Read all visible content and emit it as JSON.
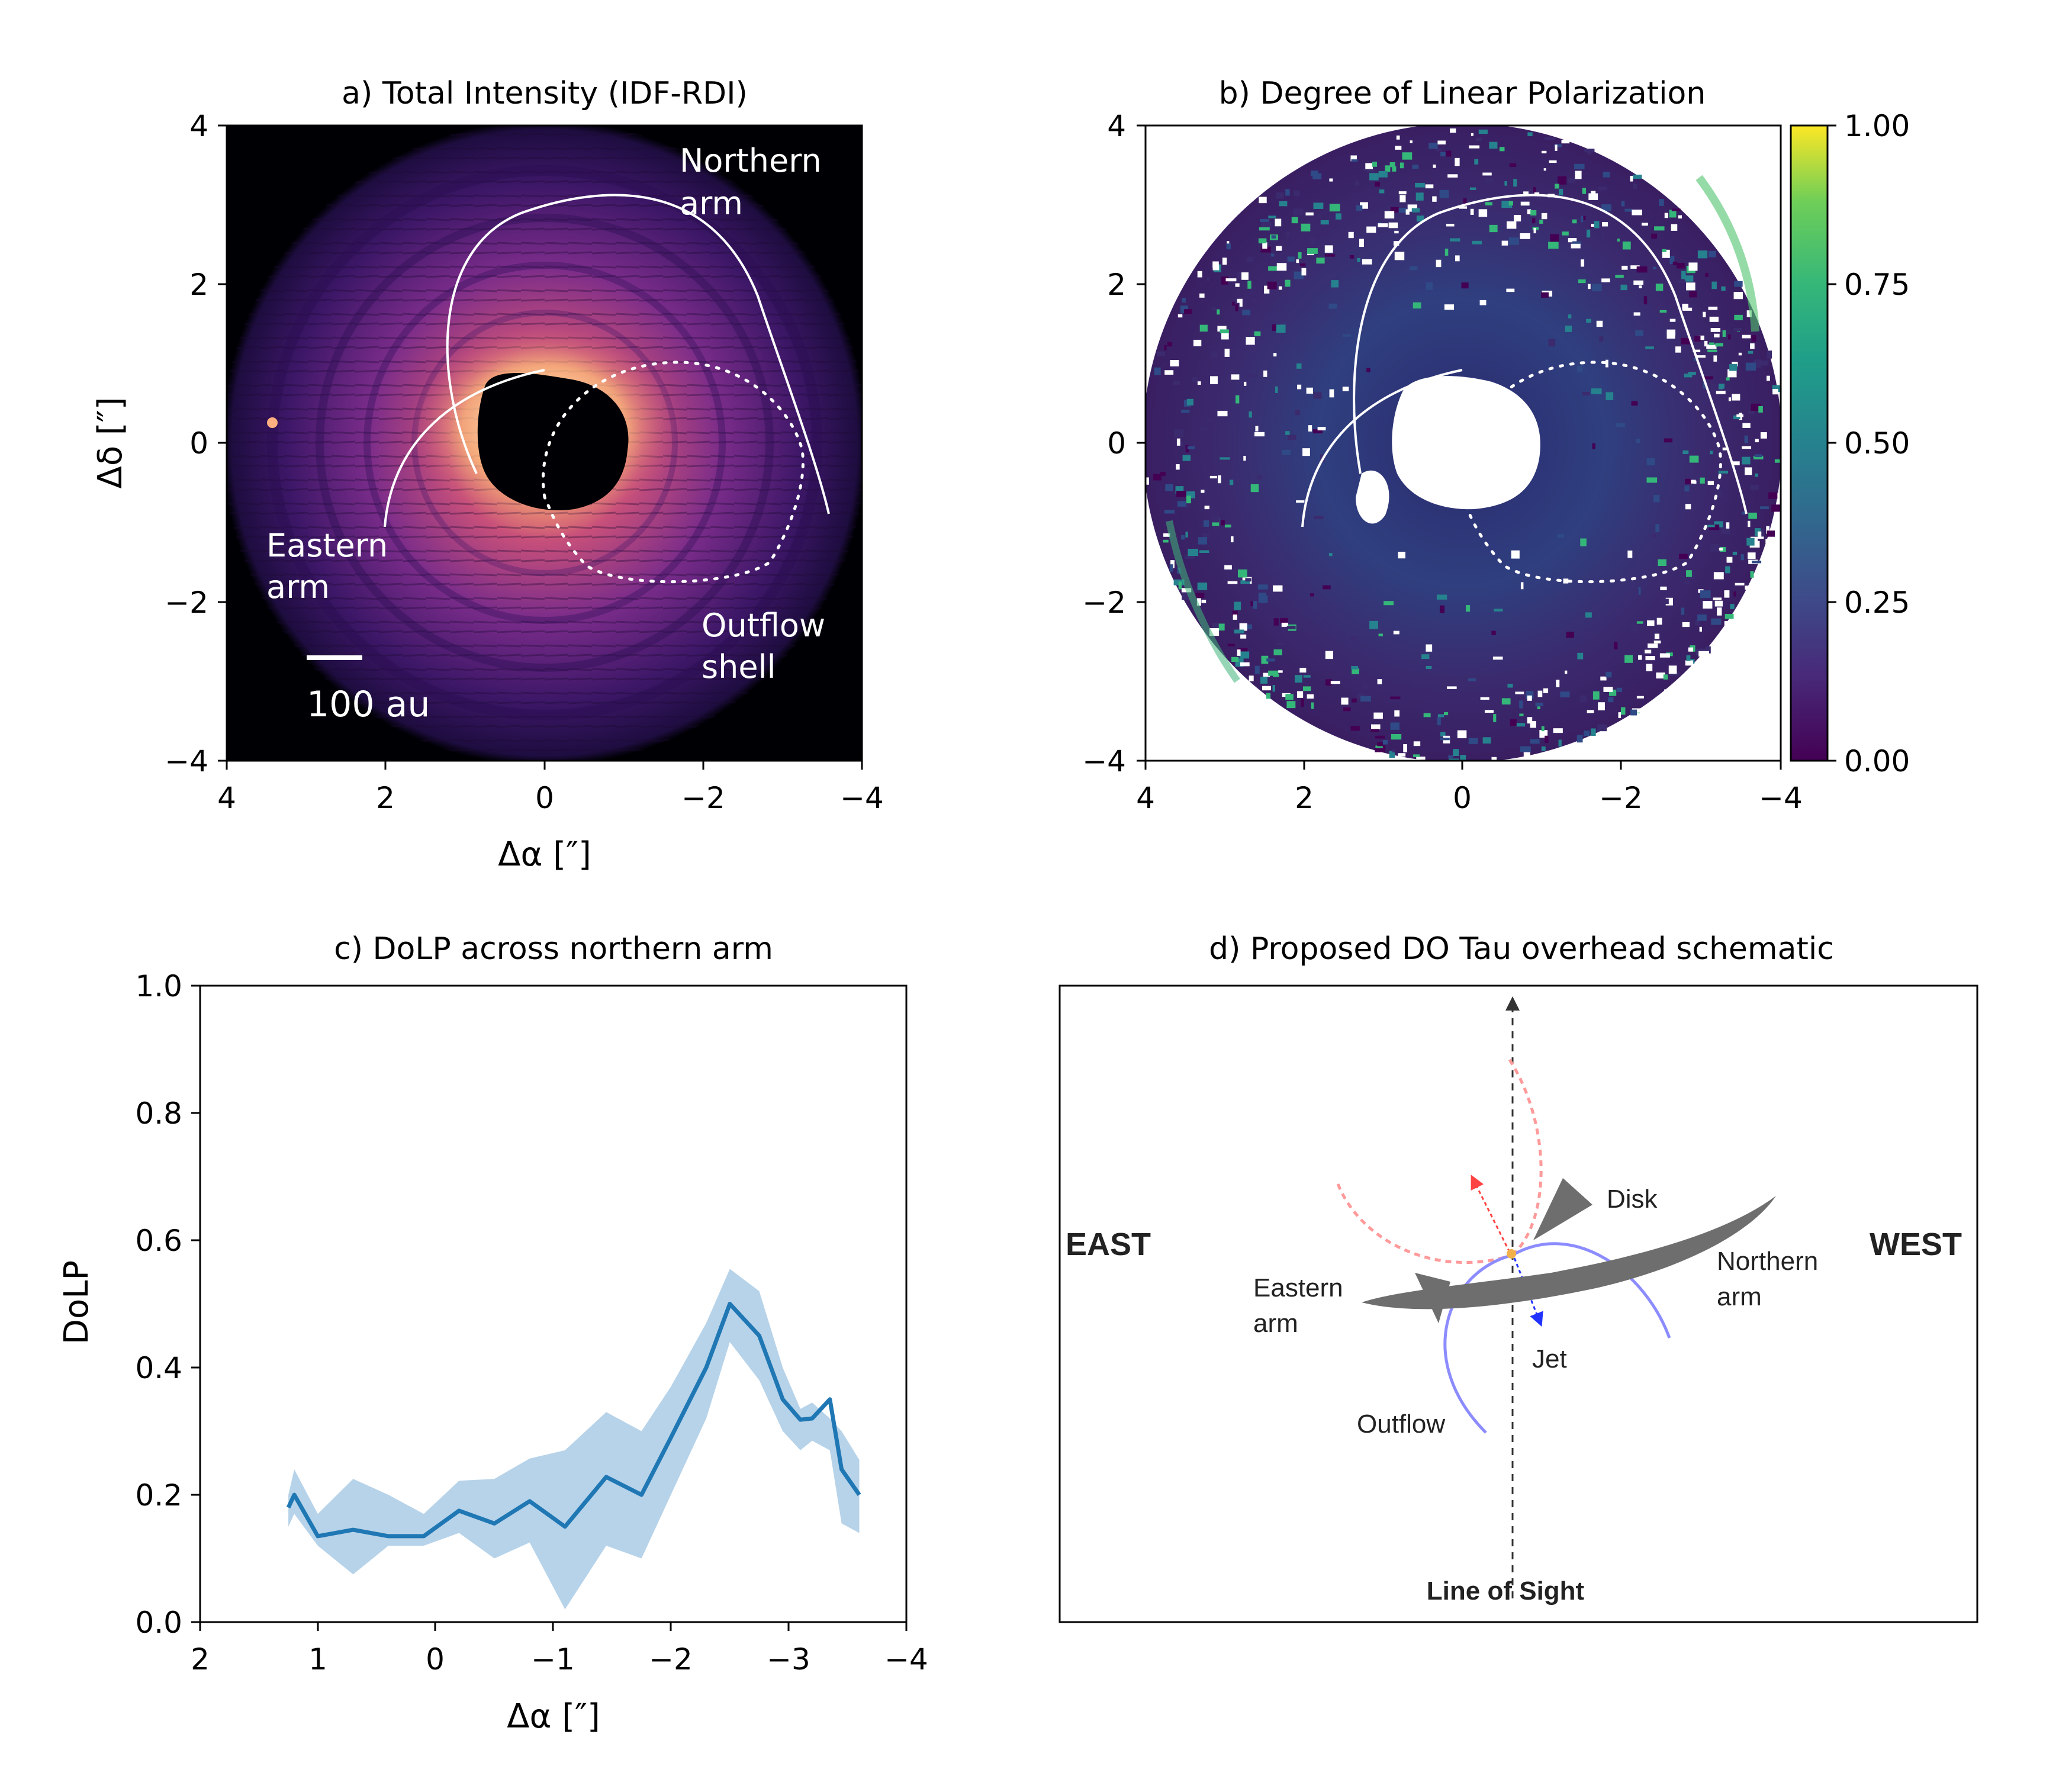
{
  "panel_a": {
    "title": "a) Total Intensity (IDF-RDI)",
    "xlabel": "Δα [″]",
    "ylabel": "Δδ [″]",
    "xticks": [
      "4",
      "2",
      "0",
      "−2",
      "−4"
    ],
    "yticks": [
      "4",
      "2",
      "0",
      "−2",
      "−4"
    ],
    "annotations": {
      "northern_arm": [
        "Northern",
        "arm"
      ],
      "eastern_arm": [
        "Eastern",
        "arm"
      ],
      "outflow_shell": [
        "Outflow",
        "shell"
      ],
      "scalebar": "100 au"
    },
    "colormap": "magma"
  },
  "panel_b": {
    "title": "b) Degree of Linear Polarization",
    "xticks": [
      "4",
      "2",
      "0",
      "−2",
      "−4"
    ],
    "yticks": [
      "4",
      "2",
      "0",
      "−2",
      "−4"
    ],
    "colorbar": {
      "ticks": [
        "0.00",
        "0.25",
        "0.50",
        "0.75",
        "1.00"
      ],
      "range": [
        0,
        1
      ],
      "colormap": "viridis"
    }
  },
  "panel_c": {
    "title": "c) DoLP across northern arm",
    "xlabel": "Δα [″]",
    "ylabel": "DoLP",
    "xticks": [
      "2",
      "1",
      "0",
      "−1",
      "−2",
      "−3",
      "−4"
    ],
    "yticks": [
      "0.0",
      "0.2",
      "0.4",
      "0.6",
      "0.8",
      "1.0"
    ]
  },
  "panel_d": {
    "title": "d) Proposed DO Tau overhead schematic",
    "labels": {
      "east": "EAST",
      "west": "WEST",
      "disk": "Disk",
      "northern_arm": [
        "Northern",
        "arm"
      ],
      "eastern_arm": [
        "Eastern",
        "arm"
      ],
      "jet": "Jet",
      "outflow": "Outflow",
      "line_of_sight": "Line of Sight"
    }
  },
  "colors": {
    "line": "#1f77b4",
    "band": "#b7d3e9",
    "jet_red": "#ff5555",
    "jet_blue": "#3344ff",
    "outflow_blue": "#8888ff"
  },
  "chart_data": [
    {
      "type": "heatmap",
      "title": "a) Total Intensity (IDF-RDI)",
      "xlabel": "Δα [″]",
      "ylabel": "Δδ [″]",
      "xlim": [
        4,
        -4
      ],
      "ylim": [
        -4,
        4
      ],
      "colormap": "magma"
    },
    {
      "type": "heatmap",
      "title": "b) Degree of Linear Polarization",
      "xlim": [
        4,
        -4
      ],
      "ylim": [
        -4,
        4
      ],
      "colormap": "viridis",
      "clim": [
        0,
        1
      ]
    },
    {
      "type": "line",
      "title": "c) DoLP across northern arm",
      "xlabel": "Δα [″]",
      "ylabel": "DoLP",
      "xlim": [
        2,
        -4
      ],
      "ylim": [
        0,
        1
      ],
      "x": [
        1.25,
        1.2,
        1.0,
        0.7,
        0.4,
        0.1,
        -0.2,
        -0.5,
        -0.8,
        -1.1,
        -1.45,
        -1.75,
        -2.0,
        -2.3,
        -2.5,
        -2.75,
        -2.95,
        -3.1,
        -3.2,
        -3.35,
        -3.45,
        -3.6
      ],
      "series": [
        {
          "values": [
            0.18,
            0.2,
            0.135,
            0.145,
            0.135,
            0.135,
            0.175,
            0.155,
            0.19,
            0.15,
            0.228,
            0.2,
            0.29,
            0.4,
            0.5,
            0.45,
            0.35,
            0.318,
            0.32,
            0.35,
            0.24,
            0.2
          ]
        },
        {
          "upper": [
            0.2,
            0.24,
            0.17,
            0.225,
            0.2,
            0.17,
            0.222,
            0.225,
            0.257,
            0.27,
            0.33,
            0.3,
            0.37,
            0.47,
            0.555,
            0.52,
            0.4,
            0.335,
            0.345,
            0.32,
            0.3,
            0.255
          ],
          "lower": [
            0.15,
            0.17,
            0.12,
            0.075,
            0.12,
            0.12,
            0.14,
            0.1,
            0.125,
            0.02,
            0.12,
            0.1,
            0.2,
            0.32,
            0.44,
            0.38,
            0.3,
            0.27,
            0.285,
            0.27,
            0.155,
            0.14
          ]
        }
      ]
    }
  ]
}
